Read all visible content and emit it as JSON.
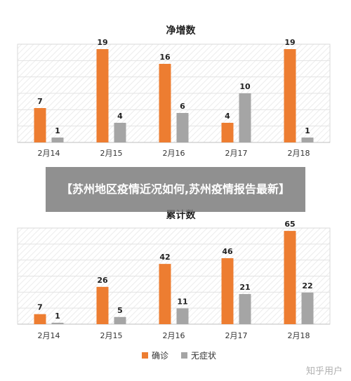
{
  "overlay_title": "【苏州地区疫情近况如何,苏州疫情报告最新】",
  "watermark": "知乎用户",
  "colors": {
    "confirmed": "#ED7D31",
    "asymptomatic": "#A5A5A5"
  },
  "legend": {
    "confirmed": "确诊",
    "asymptomatic": "无症状"
  },
  "chart_data": [
    {
      "type": "bar",
      "title": "净增数",
      "categories": [
        "2月14",
        "2月15",
        "2月16",
        "2月17",
        "2月18"
      ],
      "series": [
        {
          "name": "确诊",
          "values": [
            7,
            19,
            16,
            4,
            19
          ]
        },
        {
          "name": "无症状",
          "values": [
            1,
            4,
            6,
            10,
            1
          ]
        }
      ],
      "ylim": [
        0,
        20
      ],
      "grid": true
    },
    {
      "type": "bar",
      "title": "累计数",
      "categories": [
        "2月14",
        "2月15",
        "2月16",
        "2月17",
        "2月18"
      ],
      "series": [
        {
          "name": "确诊",
          "values": [
            7,
            26,
            42,
            46,
            65
          ]
        },
        {
          "name": "无症状",
          "values": [
            1,
            5,
            11,
            21,
            22
          ]
        }
      ],
      "ylim": [
        0,
        67
      ],
      "grid": true,
      "legend_position": "bottom"
    }
  ]
}
